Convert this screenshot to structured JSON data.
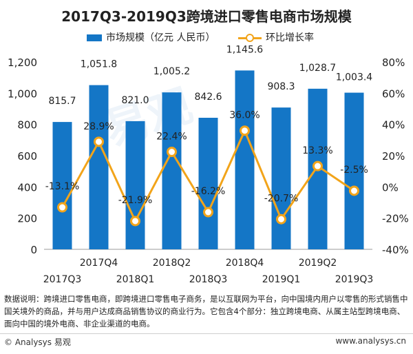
{
  "title": "2017Q3-2019Q3跨境进口零售电商市场规模",
  "legend": {
    "bar_label": "市场规模（亿元 人民币）",
    "line_label": "环比增长率"
  },
  "colors": {
    "bar": "#1476c6",
    "line": "#f2a41a"
  },
  "chart_data": {
    "type": "bar",
    "categories": [
      "2017Q3",
      "2017Q4",
      "2018Q1",
      "2018Q2",
      "2018Q3",
      "2018Q4",
      "2019Q1",
      "2019Q2",
      "2019Q3"
    ],
    "series": [
      {
        "name": "市场规模（亿元 人民币）",
        "type": "bar",
        "axis": "left",
        "values": [
          815.7,
          1051.8,
          821.0,
          1005.2,
          842.6,
          1145.6,
          908.3,
          1028.7,
          1003.4
        ],
        "labels": [
          "815.7",
          "1,051.8",
          "821.0",
          "1,005.2",
          "842.6",
          "1,145.6",
          "908.3",
          "1,028.7",
          "1,003.4"
        ]
      },
      {
        "name": "环比增长率",
        "type": "line",
        "axis": "right",
        "values": [
          -13.1,
          28.9,
          -21.9,
          22.4,
          -16.2,
          36.0,
          -20.7,
          13.3,
          -2.5
        ],
        "labels": [
          "-13.1%",
          "28.9%",
          "-21.9%",
          "22.4%",
          "-16.2%",
          "36.0%",
          "-20.7%",
          "13.3%",
          "-2.5%"
        ]
      }
    ],
    "y_left": {
      "min": 0,
      "max": 1200,
      "ticks": [
        0,
        200,
        400,
        600,
        800,
        1000,
        1200
      ],
      "tick_labels": [
        "0",
        "200",
        "400",
        "600",
        "800",
        "1,000",
        "1,200"
      ]
    },
    "y_right": {
      "min": -40,
      "max": 80,
      "ticks": [
        -40,
        -20,
        0,
        20,
        40,
        60,
        80
      ],
      "tick_labels": [
        "-40%",
        "-20%",
        "0%",
        "20%",
        "40%",
        "60%",
        "80%"
      ]
    },
    "grid": false,
    "legend_position": "top"
  },
  "note": "数据说明：跨境进口零售电商，即跨境进口零售电子商务，是以互联网为平台，向中国境内用户以零售的形式销售中国关境外的商品，并与用户达成商品销售协议的商业行为。它包含4个部分：独立跨境电商、从属主站型跨境电商、面向中国的境外电商、非企业渠道的电商。",
  "footer": {
    "left": "© Analysys 易观",
    "right": "www.analysys.cn"
  },
  "watermark": "易观"
}
